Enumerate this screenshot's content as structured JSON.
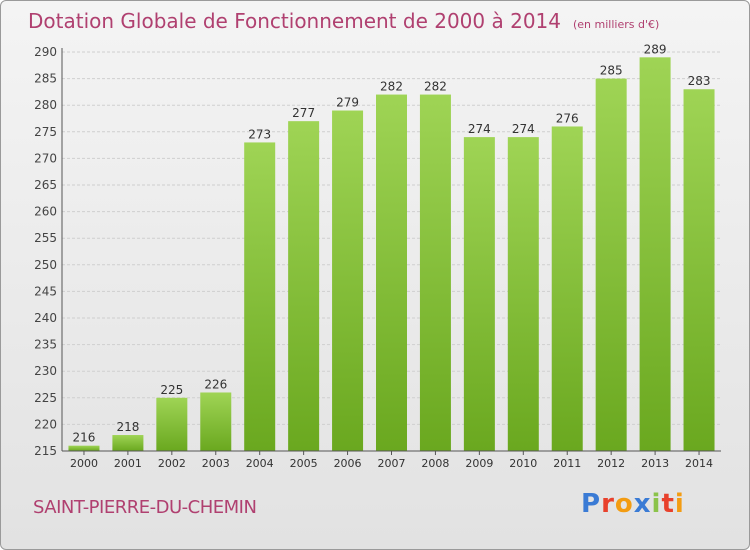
{
  "title": "Dotation Globale de Fonctionnement de 2000 à 2014",
  "unit_note": "(en milliers d'€)",
  "commune": "SAINT-PIERRE-DU-CHEMIN",
  "logo": {
    "text": "Proxiti",
    "letters": [
      {
        "ch": "P",
        "color": "#3a7bd5"
      },
      {
        "ch": "r",
        "color": "#e8412c"
      },
      {
        "ch": "o",
        "color": "#f39c12"
      },
      {
        "ch": "x",
        "color": "#3a7bd5"
      },
      {
        "ch": "i",
        "color": "#8bc34a"
      },
      {
        "ch": "t",
        "color": "#e8412c"
      },
      {
        "ch": "i",
        "color": "#f39c12"
      }
    ]
  },
  "colors": {
    "bar_light": "#9fd455",
    "bar_dark": "#6aa81f",
    "accent": "#b04070"
  },
  "chart_data": {
    "type": "bar",
    "categories": [
      "2000",
      "2001",
      "2002",
      "2003",
      "2004",
      "2005",
      "2006",
      "2007",
      "2008",
      "2009",
      "2010",
      "2011",
      "2012",
      "2013",
      "2014"
    ],
    "values": [
      216,
      218,
      225,
      226,
      273,
      277,
      279,
      282,
      282,
      274,
      274,
      276,
      285,
      289,
      283
    ],
    "ylim": [
      215,
      290
    ],
    "yticks": [
      215,
      220,
      225,
      230,
      235,
      240,
      245,
      250,
      255,
      260,
      265,
      270,
      275,
      280,
      285,
      290
    ],
    "grid": true,
    "legend": "none"
  }
}
